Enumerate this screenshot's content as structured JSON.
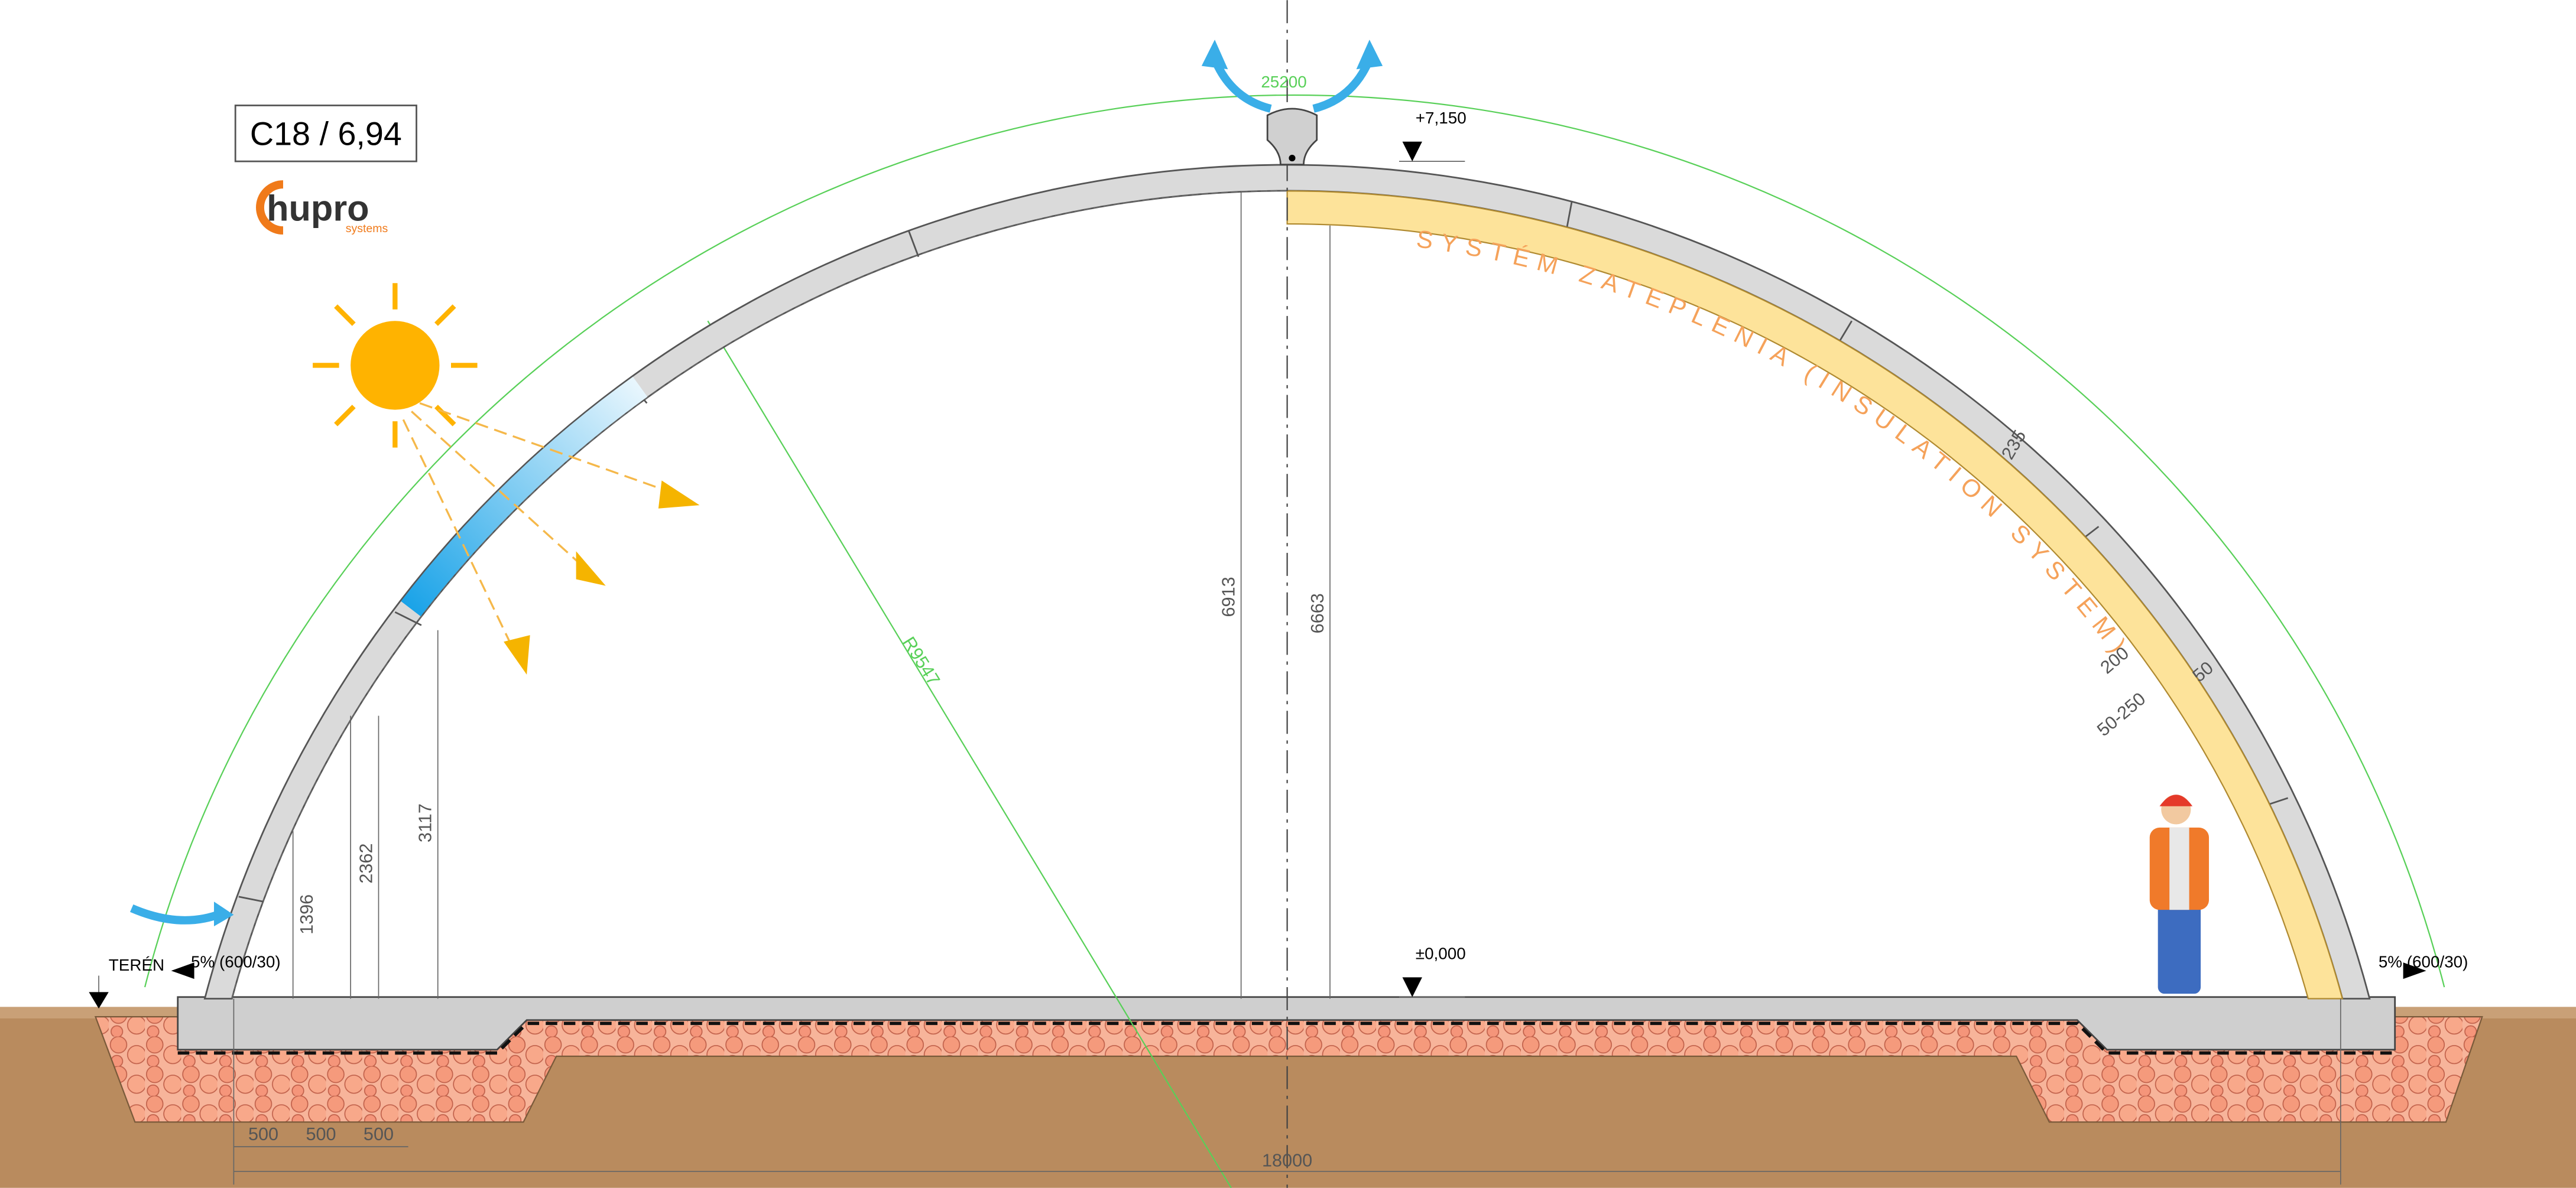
{
  "label_box": "C18 / 6,94",
  "logo": {
    "name": "hupro",
    "tagline": "systems"
  },
  "annotations": {
    "arc_length": "25200",
    "top_level": "+7,150",
    "floor_level": "±0,000",
    "terrain": "TERÉN",
    "slope_left": "5% (600/30)",
    "slope_right": "5% (600/30)",
    "insulation": "SYSTÉM ZATEPLENIA (INSULATION SYSTEM)",
    "radius": "R9547"
  },
  "dimensions": {
    "shell_thickness": "235",
    "insulation_thickness": "200",
    "gap": "50-250",
    "cover": "50",
    "height_outer": "6913",
    "height_inner": "6663",
    "height_3": "3117",
    "height_2": "2362",
    "height_1": "1396",
    "step_1": "500",
    "step_2": "500",
    "step_3": "500",
    "span": "18000"
  }
}
